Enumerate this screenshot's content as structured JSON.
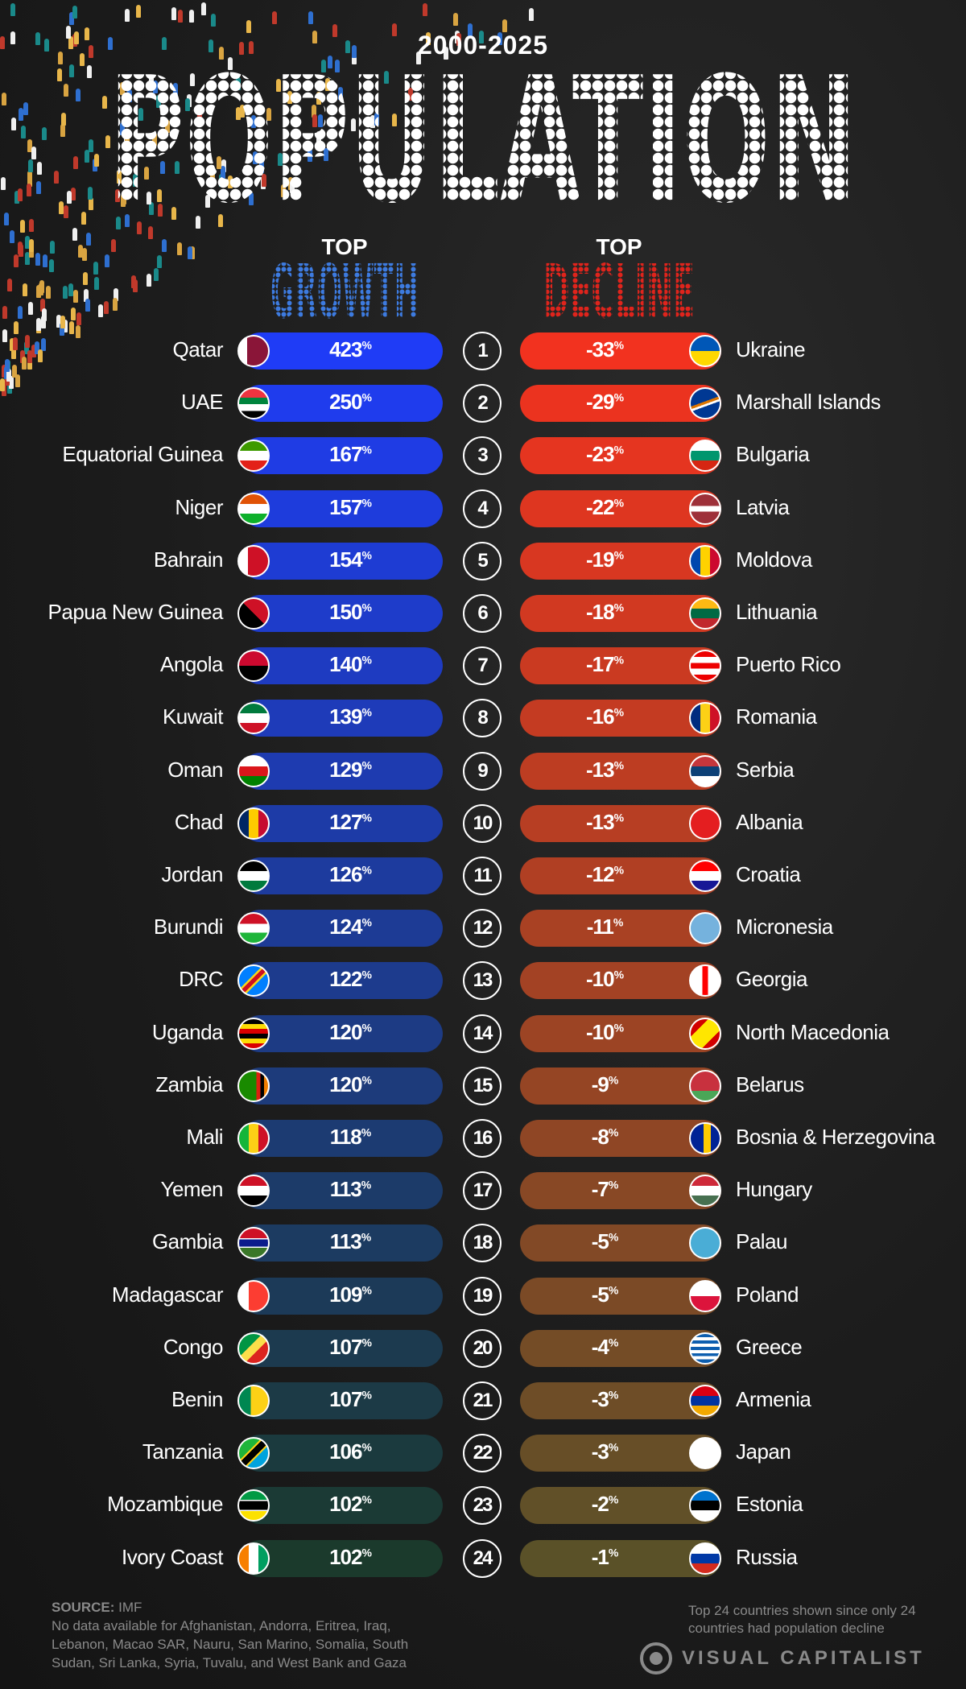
{
  "header": {
    "years": "2000-2025",
    "title": "POPULATION"
  },
  "growth_header": {
    "top": "TOP",
    "label": "GROWTH"
  },
  "decline_header": {
    "top": "TOP",
    "label": "DECLINE"
  },
  "colors": {
    "growth_start": "#1f3cf6",
    "growth_end": "#1b3a2c",
    "decline_start": "#f2321f",
    "decline_end": "#5a5128"
  },
  "percent_sign": "%",
  "growth": [
    {
      "country": "Qatar",
      "value": "423",
      "flag": [
        "#fff 0 28%",
        "#8a1538 28% 100%"
      ],
      "dir": "90deg"
    },
    {
      "country": "UAE",
      "value": "250",
      "flag": [
        "#ef3340 0 30%",
        "#00843d 30% 30%",
        "#00843d 30% 53%",
        "#fff 53% 76%",
        "#000 76% 100%"
      ],
      "dir": "180deg"
    },
    {
      "country": "Equatorial Guinea",
      "value": "167",
      "flag": [
        "#3e9a00 0 33%",
        "#fff 33% 66%",
        "#e32118 66% 100%"
      ],
      "dir": "180deg"
    },
    {
      "country": "Niger",
      "value": "157",
      "flag": [
        "#e05206 0 33%",
        "#fff 33% 66%",
        "#0db02b 66% 100%"
      ],
      "dir": "180deg"
    },
    {
      "country": "Bahrain",
      "value": "154",
      "flag": [
        "#fff 0 30%",
        "#ce1126 30% 100%"
      ],
      "dir": "90deg"
    },
    {
      "country": "Papua New Guinea",
      "value": "150",
      "flag": [
        "#000 0 50%",
        "#ce1126 50% 100%"
      ],
      "dir": "45deg"
    },
    {
      "country": "Angola",
      "value": "140",
      "flag": [
        "#cc092f 0 50%",
        "#000 50% 100%"
      ],
      "dir": "180deg"
    },
    {
      "country": "Kuwait",
      "value": "139",
      "flag": [
        "#007a3d 0 33%",
        "#fff 33% 66%",
        "#ce1126 66% 100%"
      ],
      "dir": "180deg"
    },
    {
      "country": "Oman",
      "value": "129",
      "flag": [
        "#fff 0 33%",
        "#db161b 33% 66%",
        "#008000 66% 100%"
      ],
      "dir": "180deg"
    },
    {
      "country": "Chad",
      "value": "127",
      "flag": [
        "#002664 0 33%",
        "#fecb00 33% 66%",
        "#c60c30 66% 100%"
      ],
      "dir": "90deg"
    },
    {
      "country": "Jordan",
      "value": "126",
      "flag": [
        "#000 0 33%",
        "#fff 33% 66%",
        "#007a3d 66% 100%"
      ],
      "dir": "180deg"
    },
    {
      "country": "Burundi",
      "value": "124",
      "flag": [
        "#ce1126 0 35%",
        "#fff 35% 65%",
        "#1eb53a 65% 100%"
      ],
      "dir": "180deg"
    },
    {
      "country": "DRC",
      "value": "122",
      "flag": [
        "#007fff 0 40%",
        "#f7d618 40% 45%",
        "#ce1021 45% 55%",
        "#f7d618 55% 60%",
        "#007fff 60% 100%"
      ],
      "dir": "135deg"
    },
    {
      "country": "Uganda",
      "value": "120",
      "flag": [
        "#000 0 17%",
        "#fcdc04 17% 33%",
        "#d90000 33% 50%",
        "#000 50% 67%",
        "#fcdc04 67% 83%",
        "#d90000 83% 100%"
      ],
      "dir": "180deg"
    },
    {
      "country": "Zambia",
      "value": "120",
      "flag": [
        "#198a00 0 60%",
        "#de2010 60% 73%",
        "#000 73% 86%",
        "#ef7d00 86% 100%"
      ],
      "dir": "90deg"
    },
    {
      "country": "Mali",
      "value": "118",
      "flag": [
        "#14b53a 0 33%",
        "#fcd116 33% 66%",
        "#ce1126 66% 100%"
      ],
      "dir": "90deg"
    },
    {
      "country": "Yemen",
      "value": "113",
      "flag": [
        "#ce1126 0 33%",
        "#fff 33% 66%",
        "#000 66% 100%"
      ],
      "dir": "180deg"
    },
    {
      "country": "Gambia",
      "value": "113",
      "flag": [
        "#ce1126 0 33%",
        "#fff 33% 38%",
        "#0c1c8c 38% 62%",
        "#fff 62% 67%",
        "#3a7728 67% 100%"
      ],
      "dir": "180deg"
    },
    {
      "country": "Madagascar",
      "value": "109",
      "flag": [
        "#fff 0 33%",
        "#fc3d32 33% 100%"
      ],
      "dir": "90deg"
    },
    {
      "country": "Congo",
      "value": "107",
      "flag": [
        "#009543 0 40%",
        "#fbde4a 40% 60%",
        "#dc241f 60% 100%"
      ],
      "dir": "135deg"
    },
    {
      "country": "Benin",
      "value": "107",
      "flag": [
        "#008751 0 40%",
        "#fcd116 40% 100%"
      ],
      "dir": "90deg"
    },
    {
      "country": "Tanzania",
      "value": "106",
      "flag": [
        "#1eb53a 0 38%",
        "#fcd116 38% 42%",
        "#000 42% 58%",
        "#fcd116 58% 62%",
        "#00a3dd 62% 100%"
      ],
      "dir": "135deg"
    },
    {
      "country": "Mozambique",
      "value": "102",
      "flag": [
        "#009a44 0 30%",
        "#fff 30% 35%",
        "#000 35% 65%",
        "#fff 65% 70%",
        "#fce100 70% 100%"
      ],
      "dir": "180deg"
    },
    {
      "country": "Ivory Coast",
      "value": "102",
      "flag": [
        "#f77f00 0 33%",
        "#fff 33% 66%",
        "#009e60 66% 100%"
      ],
      "dir": "90deg"
    }
  ],
  "decline": [
    {
      "country": "Ukraine",
      "value": "-33",
      "flag": [
        "#0057b7 0 50%",
        "#ffd700 50% 100%"
      ],
      "dir": "180deg"
    },
    {
      "country": "Marshall Islands",
      "value": "-29",
      "flag": [
        "#003893 0 45%",
        "#dd7500 45% 52%",
        "#fff 52% 58%",
        "#003893 58% 100%"
      ],
      "dir": "160deg"
    },
    {
      "country": "Bulgaria",
      "value": "-23",
      "flag": [
        "#fff 0 33%",
        "#00966e 33% 66%",
        "#d62612 66% 100%"
      ],
      "dir": "180deg"
    },
    {
      "country": "Latvia",
      "value": "-22",
      "flag": [
        "#9e3039 0 40%",
        "#fff 40% 60%",
        "#9e3039 60% 100%"
      ],
      "dir": "180deg"
    },
    {
      "country": "Moldova",
      "value": "-19",
      "flag": [
        "#0046ae 0 33%",
        "#ffd200 33% 66%",
        "#cc092f 66% 100%"
      ],
      "dir": "90deg"
    },
    {
      "country": "Lithuania",
      "value": "-18",
      "flag": [
        "#fdb913 0 33%",
        "#006a44 33% 66%",
        "#c1272d 66% 100%"
      ],
      "dir": "180deg"
    },
    {
      "country": "Puerto Rico",
      "value": "-17",
      "flag": [
        "#ed0000 0 20%",
        "#fff 20% 40%",
        "#ed0000 40% 60%",
        "#fff 60% 80%",
        "#ed0000 80% 100%"
      ],
      "dir": "180deg"
    },
    {
      "country": "Romania",
      "value": "-16",
      "flag": [
        "#002b7f 0 33%",
        "#fcd116 33% 66%",
        "#ce1126 66% 100%"
      ],
      "dir": "90deg"
    },
    {
      "country": "Serbia",
      "value": "-13",
      "flag": [
        "#c6363c 0 33%",
        "#0c4076 33% 66%",
        "#fff 66% 100%"
      ],
      "dir": "180deg"
    },
    {
      "country": "Albania",
      "value": "-13",
      "flag": [
        "#e41e20 0 100%"
      ],
      "dir": "180deg"
    },
    {
      "country": "Croatia",
      "value": "-12",
      "flag": [
        "#ff0000 0 33%",
        "#fff 33% 66%",
        "#171796 66% 100%"
      ],
      "dir": "180deg"
    },
    {
      "country": "Micronesia",
      "value": "-11",
      "flag": [
        "#75b2dd 0 100%"
      ],
      "dir": "180deg"
    },
    {
      "country": "Georgia",
      "value": "-10",
      "flag": [
        "#fff 0 40%",
        "#ff0000 40% 60%",
        "#fff 60% 100%"
      ],
      "dir": "90deg"
    },
    {
      "country": "North Macedonia",
      "value": "-10",
      "flag": [
        "#d20000 0 30%",
        "#ffe600 30% 70%",
        "#d20000 70% 100%"
      ],
      "dir": "135deg"
    },
    {
      "country": "Belarus",
      "value": "-9",
      "flag": [
        "#c8313e 0 66%",
        "#4aa657 66% 100%"
      ],
      "dir": "180deg"
    },
    {
      "country": "Bosnia & Herzegovina",
      "value": "-8",
      "flag": [
        "#002395 0 45%",
        "#fecb00 45% 70%",
        "#002395 70% 100%"
      ],
      "dir": "90deg"
    },
    {
      "country": "Hungary",
      "value": "-7",
      "flag": [
        "#ce2939 0 33%",
        "#fff 33% 66%",
        "#477050 66% 100%"
      ],
      "dir": "180deg"
    },
    {
      "country": "Palau",
      "value": "-5",
      "flag": [
        "#4aadd6 0 100%"
      ],
      "dir": "180deg"
    },
    {
      "country": "Poland",
      "value": "-5",
      "flag": [
        "#fff 0 50%",
        "#dc143c 50% 100%"
      ],
      "dir": "180deg"
    },
    {
      "country": "Greece",
      "value": "-4",
      "flag": [
        "#0d5eaf 0 11%",
        "#fff 11% 22%",
        "#0d5eaf 22% 33%",
        "#fff 33% 44%",
        "#0d5eaf 44% 55%",
        "#fff 55% 66%",
        "#0d5eaf 66% 77%",
        "#fff 77% 88%",
        "#0d5eaf 88% 100%"
      ],
      "dir": "180deg"
    },
    {
      "country": "Armenia",
      "value": "-3",
      "flag": [
        "#d90012 0 33%",
        "#0033a0 33% 66%",
        "#f2a800 66% 100%"
      ],
      "dir": "180deg"
    },
    {
      "country": "Japan",
      "value": "-3",
      "flag": [
        "#fff 0 100%"
      ],
      "dir": "180deg"
    },
    {
      "country": "Estonia",
      "value": "-2",
      "flag": [
        "#0072ce 0 33%",
        "#000 33% 66%",
        "#fff 66% 100%"
      ],
      "dir": "180deg"
    },
    {
      "country": "Russia",
      "value": "-1",
      "flag": [
        "#fff 0 33%",
        "#0039a6 33% 66%",
        "#d52b1e 66% 100%"
      ],
      "dir": "180deg"
    }
  ],
  "footer": {
    "source_label": "SOURCE:",
    "source": "IMF",
    "no_data": "No data available for Afghanistan, Andorra, Eritrea, Iraq, Lebanon, Macao SAR, Nauru, San Marino, Somalia, South Sudan, Sri Lanka, Syria, Tuvalu, and West Bank and Gaza",
    "note": "Top 24 countries shown since only 24 countries had population decline",
    "brand": "VISUAL CAPITALIST"
  }
}
